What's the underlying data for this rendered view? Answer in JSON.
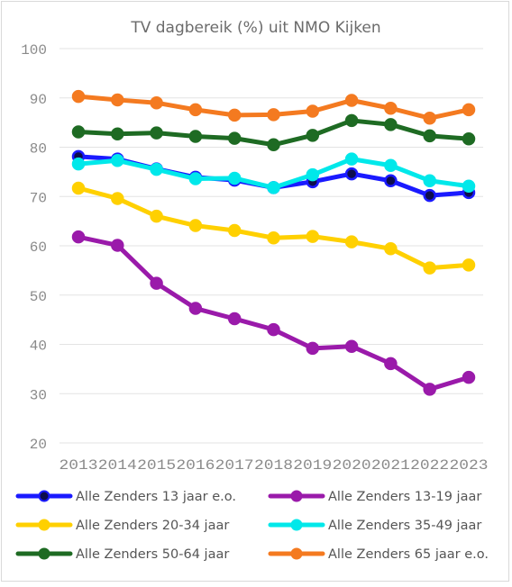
{
  "chart_data": {
    "type": "line",
    "title": "TV dagbereik (%) uit NMO Kijken",
    "xlabel": "",
    "ylabel": "",
    "ylim": [
      20,
      100
    ],
    "yticks": [
      20,
      30,
      40,
      50,
      60,
      70,
      80,
      90,
      100
    ],
    "grid": true,
    "legend_position": "bottom",
    "x": [
      "2013",
      "2014",
      "2015",
      "2016",
      "2017",
      "2018",
      "2019",
      "2020",
      "2021",
      "2022",
      "2023"
    ],
    "series": [
      {
        "name": "Alle Zenders 13 jaar e.o.",
        "color": "#1a1aff",
        "marker_fill": "#0d0d4d",
        "values": [
          78.1,
          77.6,
          75.6,
          73.9,
          73.3,
          71.8,
          73.0,
          74.6,
          73.2,
          70.2,
          70.8
        ]
      },
      {
        "name": "Alle Zenders 13-19 jaar",
        "color": "#9a1aaa",
        "marker_fill": "#9a1aaa",
        "values": [
          61.8,
          60.1,
          52.4,
          47.3,
          45.2,
          43.0,
          39.2,
          39.6,
          36.1,
          30.9,
          33.3
        ]
      },
      {
        "name": "Alle Zenders 20-34 jaar",
        "color": "#ffd000",
        "marker_fill": "#ffd000",
        "values": [
          71.7,
          69.6,
          66.0,
          64.1,
          63.1,
          61.6,
          61.9,
          60.8,
          59.4,
          55.5,
          56.1
        ]
      },
      {
        "name": "Alle Zenders 35-49 jaar",
        "color": "#00e8ea",
        "marker_fill": "#00e8ea",
        "values": [
          76.6,
          77.3,
          75.5,
          73.6,
          73.7,
          71.8,
          74.4,
          77.6,
          76.3,
          73.2,
          72.1
        ]
      },
      {
        "name": "Alle Zenders 50-64 jaar",
        "color": "#1e6b23",
        "marker_fill": "#1e6b23",
        "values": [
          83.1,
          82.7,
          82.9,
          82.2,
          81.8,
          80.5,
          82.4,
          85.4,
          84.6,
          82.3,
          81.7
        ]
      },
      {
        "name": "Alle Zenders 65 jaar e.o.",
        "color": "#f47a20",
        "marker_fill": "#f47a20",
        "values": [
          90.3,
          89.6,
          89.0,
          87.6,
          86.5,
          86.6,
          87.3,
          89.5,
          87.9,
          85.9,
          87.6
        ]
      }
    ]
  }
}
